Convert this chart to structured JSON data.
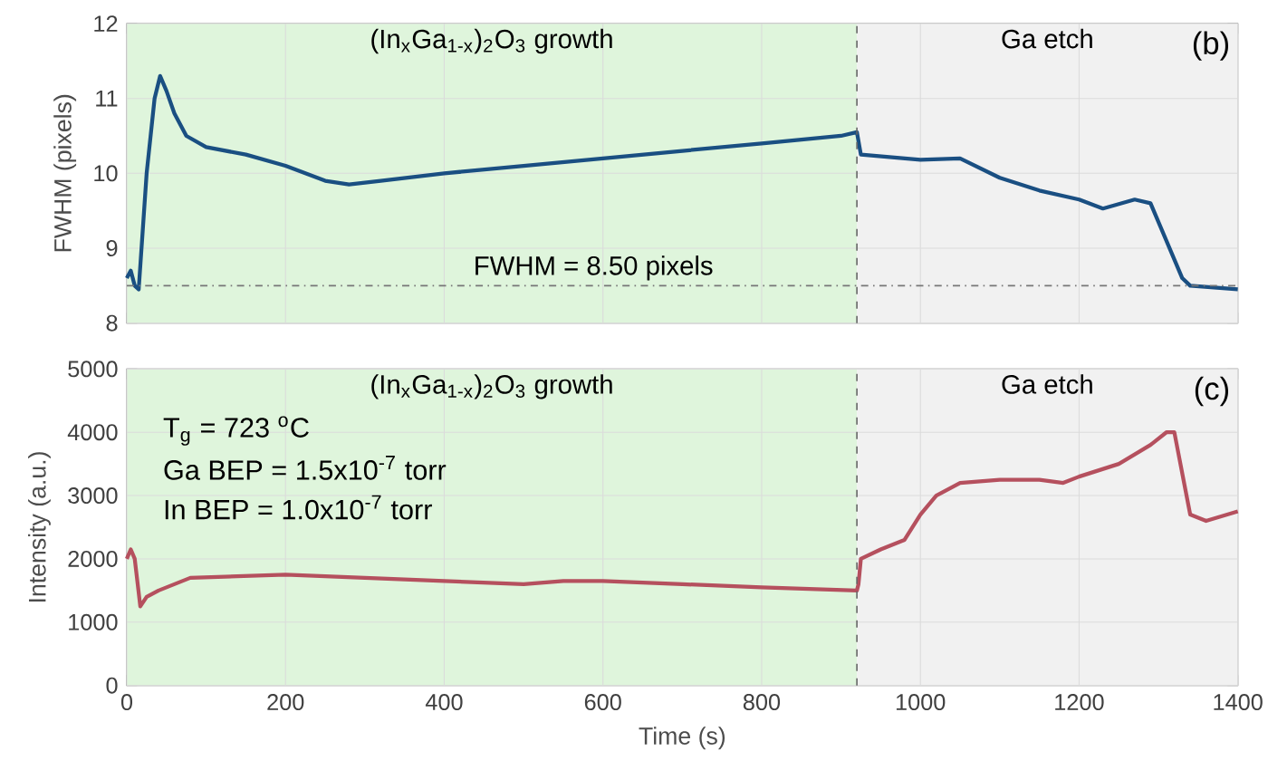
{
  "chart_data": [
    {
      "type": "line",
      "ylabel": "FWHM (pixels)",
      "xlim": [
        0,
        1400
      ],
      "xticks": [
        0,
        200,
        400,
        600,
        800,
        1000,
        1200,
        1400
      ],
      "ylim": [
        8,
        12
      ],
      "yticks": [
        8,
        9,
        10,
        11,
        12
      ],
      "grid": true,
      "tick_labels": "y",
      "line_style": "solid",
      "series": [
        {
          "color": "#1a4f82",
          "x": [
            0,
            5,
            10,
            15,
            25,
            35,
            42,
            50,
            60,
            75,
            100,
            150,
            200,
            250,
            280,
            320,
            400,
            500,
            600,
            700,
            800,
            900,
            920,
            925,
            1000,
            1050,
            1100,
            1150,
            1200,
            1230,
            1270,
            1290,
            1310,
            1330,
            1340,
            1400
          ],
          "values": [
            8.6,
            8.7,
            8.5,
            8.45,
            10.0,
            11.0,
            11.3,
            11.1,
            10.8,
            10.5,
            10.35,
            10.25,
            10.1,
            9.9,
            9.85,
            9.9,
            10.0,
            10.1,
            10.2,
            10.3,
            10.4,
            10.5,
            10.55,
            10.25,
            10.18,
            10.2,
            9.94,
            9.77,
            9.65,
            9.53,
            9.65,
            9.6,
            9.1,
            8.6,
            8.5,
            8.45
          ]
        }
      ],
      "bands": [
        {
          "axis": "x",
          "from": 0,
          "to": 920,
          "label": "(In$_{x}$Ga$_{1-x}$)$_{2}$O$_{3}$ growth",
          "color": "#dff5dc"
        },
        {
          "axis": "x",
          "from": 920,
          "to": 1400,
          "label": "Ga etch",
          "color": "#f1f1f1"
        }
      ],
      "ref_lines": [
        {
          "axis": "x",
          "value": 920,
          "line_style": "dashed",
          "color": "#666666"
        },
        {
          "axis": "y",
          "value": 8.5,
          "label": "FWHM = 8.50 pixels",
          "line_style": "dashdot",
          "color": "#777777"
        }
      ],
      "annotations": [
        "(b)"
      ]
    },
    {
      "type": "line",
      "xlabel": "Time (s)",
      "ylabel": "Intensity (a.u.)",
      "xlim": [
        0,
        1400
      ],
      "xticks": [
        0,
        200,
        400,
        600,
        800,
        1000,
        1200,
        1400
      ],
      "ylim": [
        0,
        5000
      ],
      "yticks": [
        0,
        1000,
        2000,
        3000,
        4000,
        5000
      ],
      "grid": true,
      "line_style": "solid",
      "series": [
        {
          "color": "#b5505e",
          "x": [
            0,
            5,
            10,
            17,
            25,
            40,
            60,
            80,
            200,
            300,
            400,
            500,
            550,
            600,
            700,
            800,
            920,
            922,
            925,
            950,
            980,
            1000,
            1020,
            1050,
            1100,
            1150,
            1180,
            1200,
            1250,
            1290,
            1310,
            1320,
            1340,
            1360,
            1400
          ],
          "values": [
            2000,
            2150,
            2000,
            1250,
            1400,
            1500,
            1600,
            1700,
            1750,
            1700,
            1650,
            1600,
            1650,
            1650,
            1600,
            1550,
            1500,
            1600,
            2000,
            2150,
            2300,
            2700,
            3000,
            3200,
            3250,
            3250,
            3200,
            3300,
            3500,
            3800,
            4000,
            4000,
            2700,
            2600,
            2750
          ]
        }
      ],
      "bands": [
        {
          "axis": "x",
          "from": 0,
          "to": 920,
          "label": "(In$_{x}$Ga$_{1-x}$)$_{2}$O$_{3}$ growth",
          "color": "#dff5dc"
        },
        {
          "axis": "x",
          "from": 920,
          "to": 1400,
          "label": "Ga etch",
          "color": "#f1f1f1"
        }
      ],
      "ref_lines": [
        {
          "axis": "x",
          "value": 920,
          "line_style": "dashed",
          "color": "#666666"
        }
      ],
      "annotations": [
        "(c)",
        "T$_{g}$ = 723 $^{o}$C",
        "Ga BEP = 1.5x10$^{-7}$ torr",
        "In BEP = 1.0x10$^{-7}$ torr"
      ]
    }
  ]
}
